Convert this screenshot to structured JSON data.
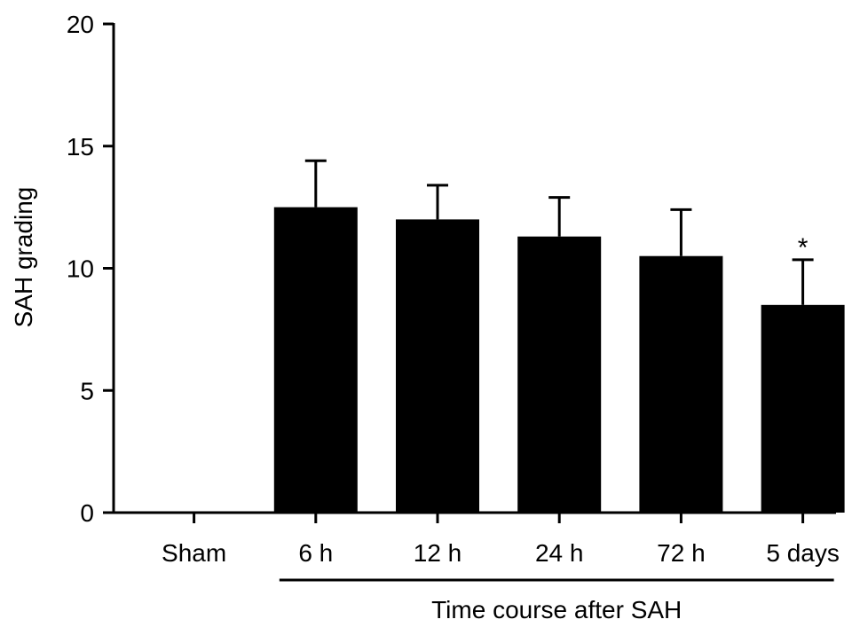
{
  "chart_data": {
    "type": "bar",
    "title": "",
    "xlabel": "Time course after SAH",
    "ylabel": "SAH grading",
    "categories": [
      "Sham",
      "6 h",
      "12 h",
      "24 h",
      "72 h",
      "5 days"
    ],
    "values": [
      0,
      12.5,
      12.0,
      11.3,
      10.5,
      8.5
    ],
    "error_upper": [
      0,
      1.9,
      1.4,
      1.6,
      1.9,
      1.85
    ],
    "significance": [
      "",
      "",
      "",
      "",
      "",
      "*"
    ],
    "ylim": [
      0,
      20
    ],
    "yticks": [
      0,
      5,
      10,
      15,
      20
    ],
    "grid": false,
    "bracket_label": "Time course after SAH",
    "bracket_categories": [
      "6 h",
      "5 days"
    ],
    "bar_color": "#000000"
  }
}
